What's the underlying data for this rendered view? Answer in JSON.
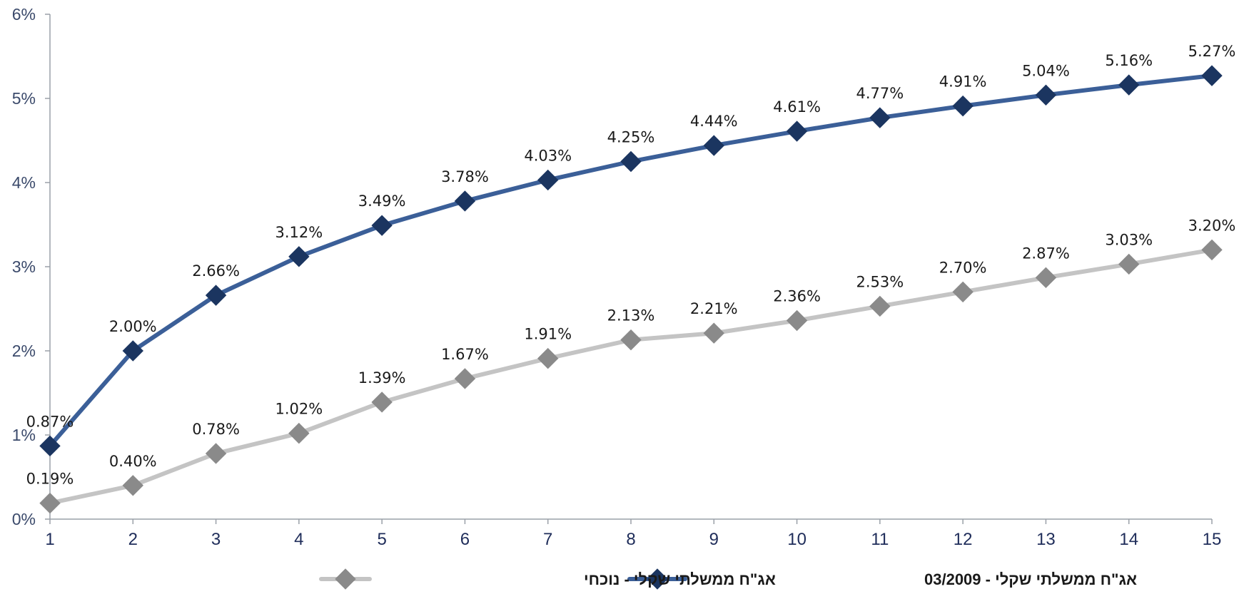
{
  "chart_data": {
    "type": "line",
    "x": [
      1,
      2,
      3,
      4,
      5,
      6,
      7,
      8,
      9,
      10,
      11,
      12,
      13,
      14,
      15
    ],
    "x_tick_labels": [
      "1",
      "2",
      "3",
      "4",
      "5",
      "6",
      "7",
      "8",
      "9",
      "10",
      "11",
      "12",
      "13",
      "14",
      "15"
    ],
    "ylim": [
      0,
      6
    ],
    "y_tick_labels": [
      "0%",
      "1%",
      "2%",
      "3%",
      "4%",
      "5%",
      "6%"
    ],
    "grid": false,
    "legend_position": "bottom",
    "series": [
      {
        "name": "אג\"ח ממשלתי שקלי - 03/2009",
        "color": "#3b5f98",
        "marker_color": "#1b3560",
        "values": [
          0.87,
          2.0,
          2.66,
          3.12,
          3.49,
          3.78,
          4.03,
          4.25,
          4.44,
          4.61,
          4.77,
          4.91,
          5.04,
          5.16,
          5.27
        ],
        "labels": [
          "0.87%",
          "2.00%",
          "2.66%",
          "3.12%",
          "3.49%",
          "3.78%",
          "4.03%",
          "4.25%",
          "4.44%",
          "4.61%",
          "4.77%",
          "4.91%",
          "5.04%",
          "5.16%",
          "5.27%"
        ]
      },
      {
        "name": "אג\"ח ממשלתי שקלי - נוכחי",
        "color": "#c4c4c4",
        "marker_color": "#8a8a8a",
        "values": [
          0.19,
          0.4,
          0.78,
          1.02,
          1.39,
          1.67,
          1.91,
          2.13,
          2.21,
          2.36,
          2.53,
          2.7,
          2.87,
          3.03,
          3.2
        ],
        "labels": [
          "0.19%",
          "0.40%",
          "0.78%",
          "1.02%",
          "1.39%",
          "1.67%",
          "1.91%",
          "2.13%",
          "2.21%",
          "2.36%",
          "2.53%",
          "2.70%",
          "2.87%",
          "3.03%",
          "3.20%"
        ]
      }
    ]
  }
}
